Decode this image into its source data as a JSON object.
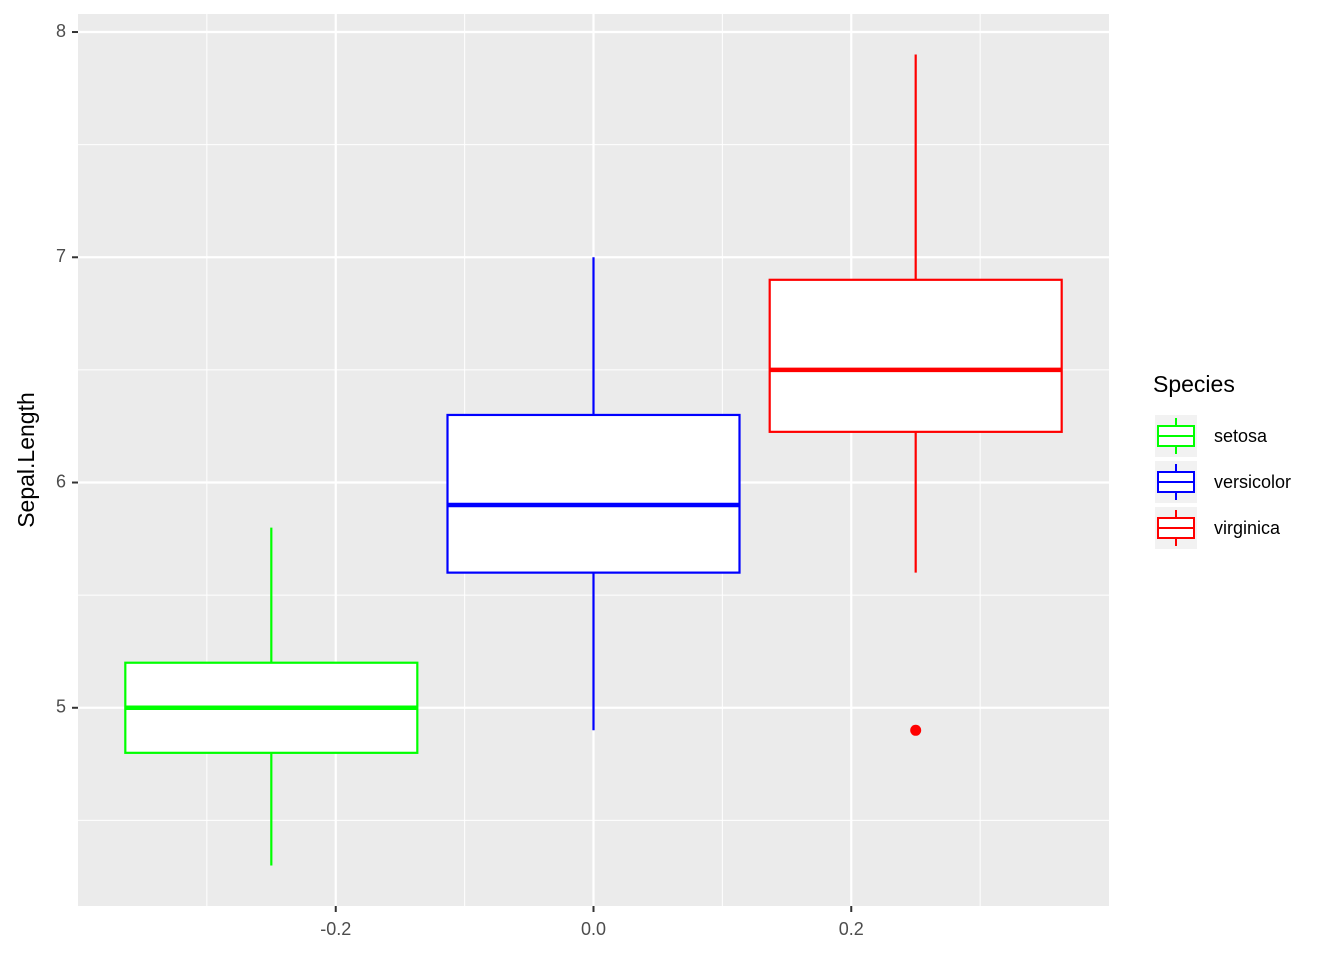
{
  "chart_data": {
    "type": "boxplot",
    "y_label": "Sepal.Length",
    "legend_title": "Species",
    "legend_position": "right",
    "xlim": [
      -0.4,
      0.4
    ],
    "xticks": [
      -0.2,
      {
        "value": 0,
        "label": "0.0"
      },
      0.2
    ],
    "x_minor_ticks": [
      -0.3,
      -0.1,
      0.1,
      0.3
    ],
    "ylim": [
      4.12,
      8.08
    ],
    "yticks": [
      5,
      6,
      7,
      8
    ],
    "y_minor_ticks": [
      4.5,
      5.5,
      6.5,
      7.5
    ],
    "grid": true,
    "series": [
      {
        "name": "setosa",
        "color": "#00ff00",
        "x": -0.25,
        "min": 4.3,
        "q1": 4.8,
        "median": 5.0,
        "q3": 5.2,
        "max": 5.8,
        "outliers": []
      },
      {
        "name": "versicolor",
        "color": "#0000ff",
        "x": 0,
        "min": 4.9,
        "q1": 5.6,
        "median": 5.9,
        "q3": 6.3,
        "max": 7.0,
        "outliers": []
      },
      {
        "name": "virginica",
        "color": "#ff0000",
        "x": 0.25,
        "min": 5.6,
        "q1": 6.225,
        "median": 6.5,
        "q3": 6.9,
        "max": 7.9,
        "outliers": [
          4.9
        ]
      }
    ]
  }
}
